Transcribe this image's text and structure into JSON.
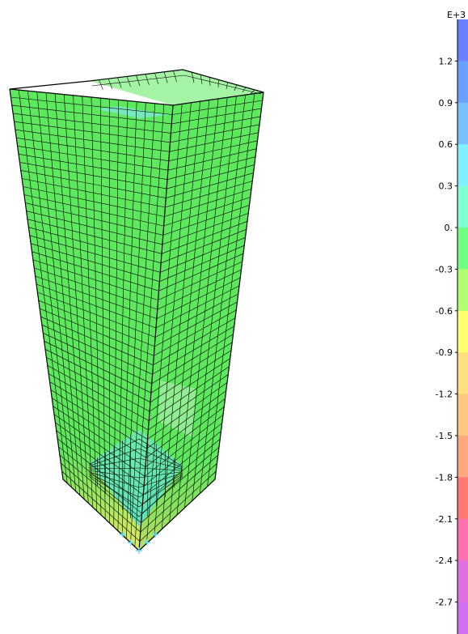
{
  "legend": {
    "exponent": "E+3",
    "tick_labels": [
      "1.2",
      "0.9",
      "0.6",
      "0.3",
      "0.",
      "-0.3",
      "-0.6",
      "-0.9",
      "-1.2",
      "-1.5",
      "-1.8",
      "-2.1",
      "-2.4",
      "-2.7"
    ],
    "band_colors": [
      "#6a80ff",
      "#6aa0ff",
      "#7ac0ff",
      "#80f0ff",
      "#80ffd0",
      "#70ff80",
      "#b0ff70",
      "#ffff70",
      "#ffe080",
      "#ffc880",
      "#ffa880",
      "#ff7a70",
      "#ff70b0",
      "#e070e0",
      "#d070f0"
    ]
  },
  "model": {
    "mesh_color": "#5ee85e",
    "mesh_light_color": "#8cf08c",
    "base_color": "#ccee66",
    "support_color": "#60e0ff",
    "line_color": "#000000"
  }
}
